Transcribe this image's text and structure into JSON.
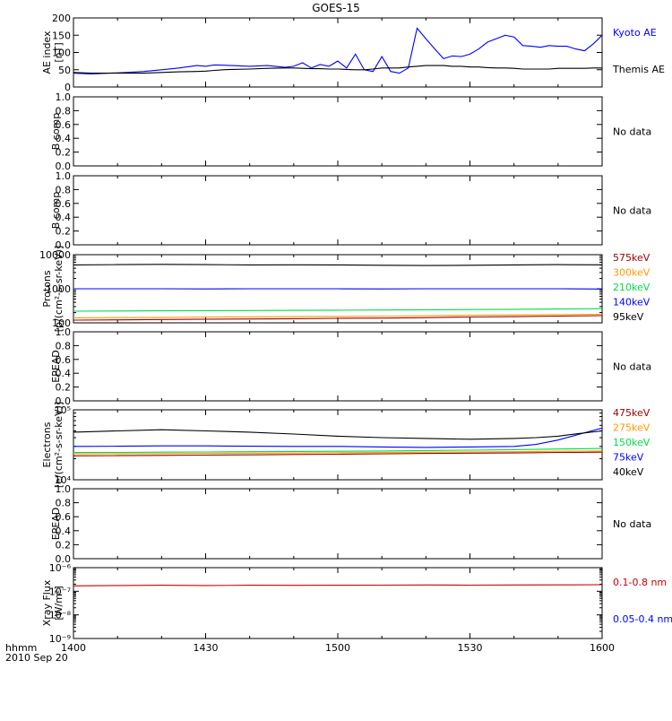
{
  "title": "GOES-15",
  "time_axis": {
    "ticks": [
      "1400",
      "1430",
      "1500",
      "1530",
      "1600"
    ],
    "label": "hhmm",
    "date": "2010 Sep 20"
  },
  "colors": {
    "black": "#000000",
    "blue": "#0000ff",
    "red": "#cc0000",
    "orange": "#ff9900",
    "green": "#00dd44",
    "darkred": "#990000"
  },
  "chart_data": [
    {
      "id": "ae",
      "type": "line",
      "ylabel": [
        "AE index",
        "[nT]"
      ],
      "ylim": [
        0,
        200
      ],
      "yticks": [
        "0",
        "50",
        "100",
        "150",
        "200"
      ],
      "x_minutes": [
        0,
        4,
        8,
        12,
        16,
        20,
        24,
        28,
        30,
        32,
        34,
        36,
        40,
        44,
        48,
        50,
        52,
        54,
        56,
        58,
        60,
        62,
        64,
        66,
        68,
        70,
        72,
        74,
        76,
        78,
        80,
        82,
        84,
        86,
        88,
        90,
        92,
        94,
        96,
        98,
        100,
        102,
        104,
        106,
        108,
        110,
        112,
        114,
        116,
        118,
        120
      ],
      "series": [
        {
          "name": "Kyoto AE",
          "color": "blue",
          "values": [
            40,
            38,
            40,
            42,
            45,
            50,
            55,
            62,
            60,
            64,
            63,
            62,
            60,
            62,
            57,
            60,
            70,
            55,
            65,
            60,
            75,
            55,
            95,
            50,
            45,
            88,
            45,
            40,
            55,
            170,
            140,
            110,
            82,
            90,
            88,
            95,
            110,
            130,
            140,
            150,
            145,
            120,
            118,
            115,
            120,
            118,
            118,
            110,
            105,
            125,
            150
          ]
        },
        {
          "name": "Themis AE",
          "color": "black",
          "values": [
            42,
            40,
            40,
            40,
            40,
            42,
            44,
            45,
            46,
            48,
            50,
            51,
            52,
            54,
            55,
            55,
            54,
            53,
            53,
            52,
            52,
            51,
            50,
            50,
            52,
            55,
            55,
            55,
            58,
            60,
            62,
            62,
            62,
            60,
            60,
            58,
            58,
            56,
            55,
            55,
            54,
            52,
            52,
            52,
            52,
            54,
            54,
            54,
            54,
            55,
            55
          ]
        }
      ]
    },
    {
      "id": "b1",
      "type": "line",
      "ylabel": [
        "B comp"
      ],
      "ylim": [
        0,
        1
      ],
      "yticks": [
        "0.0",
        "0.2",
        "0.4",
        "0.6",
        "0.8",
        "1.0"
      ],
      "note": "No data",
      "series": []
    },
    {
      "id": "b2",
      "type": "line",
      "ylabel": [
        "B comp"
      ],
      "ylim": [
        0,
        1
      ],
      "yticks": [
        "0.0",
        "0.2",
        "0.4",
        "0.6",
        "0.8",
        "1.0"
      ],
      "note": "No data",
      "series": []
    },
    {
      "id": "protons",
      "type": "line",
      "scale": "log",
      "ylabel": [
        "Protons",
        "[p/(cm²-s-sr-keV)]"
      ],
      "ylim": [
        100,
        10000
      ],
      "yticks": [
        "100",
        "1000",
        "10000"
      ],
      "x_minutes": [
        0,
        10,
        20,
        30,
        40,
        50,
        60,
        70,
        80,
        90,
        100,
        110,
        120
      ],
      "series": [
        {
          "name": "575keV",
          "color": "darkred",
          "values": [
            120,
            122,
            125,
            128,
            130,
            132,
            135,
            138,
            142,
            148,
            152,
            158,
            162
          ]
        },
        {
          "name": "300keV",
          "color": "orange",
          "values": [
            140,
            142,
            145,
            148,
            150,
            152,
            155,
            158,
            162,
            166,
            170,
            174,
            178
          ]
        },
        {
          "name": "210keV",
          "color": "green",
          "values": [
            220,
            222,
            225,
            228,
            230,
            232,
            235,
            238,
            242,
            245,
            250,
            255,
            260
          ]
        },
        {
          "name": "140keV",
          "color": "blue",
          "values": [
            1000,
            1000,
            1000,
            990,
            1000,
            1000,
            1000,
            990,
            1000,
            1000,
            1000,
            1000,
            980
          ]
        },
        {
          "name": "95keV",
          "color": "black",
          "values": [
            5000,
            5100,
            5200,
            5100,
            5000,
            5050,
            5000,
            4900,
            4800,
            4900,
            5000,
            5100,
            5050
          ]
        }
      ]
    },
    {
      "id": "epead1",
      "type": "line",
      "ylabel": [
        "EPEAD"
      ],
      "ylim": [
        0,
        1
      ],
      "yticks": [
        "0.0",
        "0.2",
        "0.4",
        "0.6",
        "0.8",
        "1.0"
      ],
      "note": "No data",
      "series": []
    },
    {
      "id": "electrons",
      "type": "line",
      "scale": "log",
      "ylabel": [
        "Electrons",
        "[e/(cm²-s-sr-keV)]"
      ],
      "ylim": [
        10000,
        100000
      ],
      "yticks": [
        "10⁴",
        "10⁵"
      ],
      "x_minutes": [
        0,
        10,
        20,
        30,
        40,
        50,
        60,
        70,
        80,
        90,
        100,
        105,
        110,
        115,
        120
      ],
      "series": [
        {
          "name": "475keV",
          "color": "darkred",
          "values": [
            22000,
            22100,
            22300,
            22500,
            22700,
            23000,
            23200,
            23500,
            23800,
            24000,
            24200,
            24400,
            24600,
            24700,
            24800
          ]
        },
        {
          "name": "275keV",
          "color": "orange",
          "values": [
            23500,
            23600,
            23700,
            23800,
            24000,
            24200,
            24400,
            24600,
            24800,
            25000,
            25200,
            25400,
            25600,
            25700,
            25800
          ]
        },
        {
          "name": "150keV",
          "color": "green",
          "values": [
            24500,
            24600,
            24800,
            25000,
            25200,
            25400,
            25600,
            25800,
            26200,
            26500,
            27000,
            27200,
            27500,
            27800,
            28000
          ]
        },
        {
          "name": "75keV",
          "color": "blue",
          "values": [
            30000,
            30200,
            30500,
            30500,
            30200,
            30000,
            30000,
            29500,
            29000,
            29500,
            30000,
            32000,
            37000,
            45000,
            55000
          ]
        },
        {
          "name": "40keV",
          "color": "black",
          "values": [
            48000,
            50000,
            52000,
            50000,
            48000,
            45000,
            42000,
            40000,
            39000,
            38000,
            39000,
            40000,
            42000,
            46000,
            50000
          ]
        }
      ]
    },
    {
      "id": "epead2",
      "type": "line",
      "ylabel": [
        "EPEAD"
      ],
      "ylim": [
        0,
        1
      ],
      "yticks": [
        "0.0",
        "0.2",
        "0.4",
        "0.6",
        "0.8",
        "1.0"
      ],
      "note": "No data",
      "series": []
    },
    {
      "id": "xray",
      "type": "line",
      "scale": "log",
      "ylabel": [
        "Xray Flux",
        "[W/m²]"
      ],
      "ylim": [
        1e-09,
        1e-06
      ],
      "yticks": [
        "10⁻⁹",
        "10⁻⁸",
        "10⁻⁷",
        "10⁻⁶"
      ],
      "x_minutes": [
        0,
        10,
        20,
        30,
        40,
        50,
        60,
        70,
        80,
        90,
        100,
        110,
        120
      ],
      "series": [
        {
          "name": "0.1-0.8 nm",
          "color": "red",
          "values": [
            1.7e-07,
            1.75e-07,
            1.8e-07,
            1.75e-07,
            1.8e-07,
            1.78e-07,
            1.8e-07,
            1.82e-07,
            1.85e-07,
            1.82e-07,
            1.85e-07,
            1.87e-07,
            1.9e-07
          ]
        },
        {
          "name": "0.05-0.4 nm",
          "color": "blue",
          "values": []
        }
      ]
    }
  ]
}
